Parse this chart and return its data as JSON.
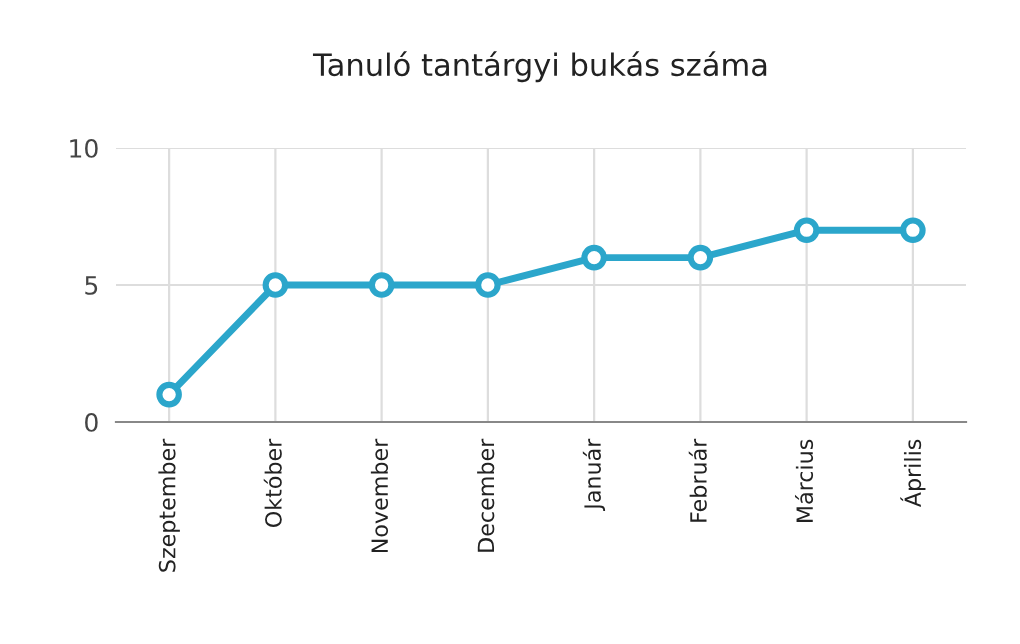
{
  "chart_data": {
    "type": "line",
    "title": "Tanuló tantárgyi bukás száma",
    "categories": [
      "Szeptember",
      "Október",
      "November",
      "December",
      "Január",
      "Február",
      "Március",
      "Április"
    ],
    "series": [
      {
        "color": "#2ba6cb",
        "values": [
          1,
          5,
          5,
          5,
          6,
          6,
          7,
          7
        ]
      }
    ],
    "ylim": [
      0,
      10
    ],
    "yticks": [
      0,
      5,
      10
    ],
    "grid": true,
    "marker": "circle",
    "line_style": "solid"
  }
}
